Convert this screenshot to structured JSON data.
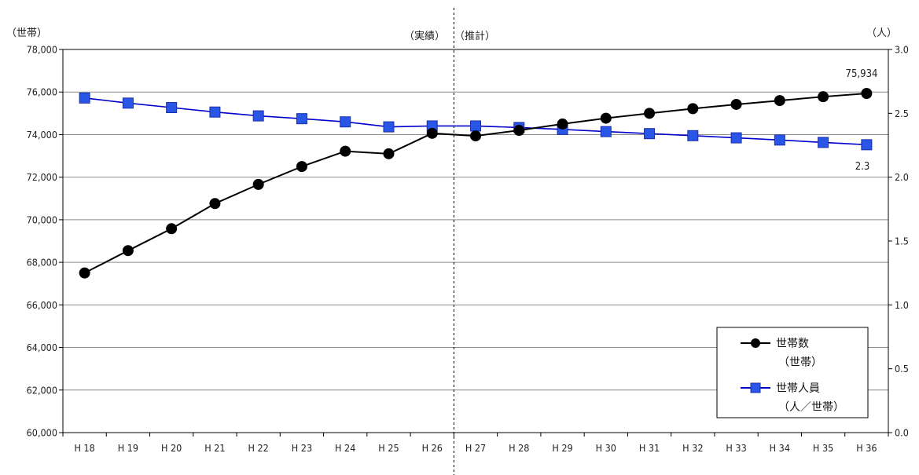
{
  "chart_data": {
    "type": "line",
    "categories": [
      "H 18",
      "H 19",
      "H 20",
      "H 21",
      "H 22",
      "H 23",
      "H 24",
      "H 25",
      "H 26",
      "H 27",
      "H 28",
      "H 29",
      "H 30",
      "H 31",
      "H 32",
      "H 33",
      "H 34",
      "H 35",
      "H 36"
    ],
    "y_left": {
      "unit_label": "（世帯）",
      "ylim": [
        60000,
        78000
      ],
      "ticks": [
        "60,000",
        "62,000",
        "64,000",
        "66,000",
        "68,000",
        "70,000",
        "72,000",
        "74,000",
        "76,000",
        "78,000"
      ]
    },
    "y_right": {
      "unit_label": "（人）",
      "ylim": [
        0.0,
        3.0
      ],
      "ticks": [
        "0.0",
        "0.5",
        "1.0",
        "1.5",
        "2.0",
        "2.5",
        "3.0"
      ]
    },
    "series": [
      {
        "name": "世帯数（世帯）",
        "legend_line1": "世帯数",
        "legend_line2": "（世帯）",
        "axis": "left",
        "color": "#000000",
        "marker": "circle",
        "values": [
          67500,
          68550,
          69580,
          70760,
          71660,
          72500,
          73220,
          73100,
          74060,
          73940,
          74200,
          74500,
          74770,
          75000,
          75220,
          75420,
          75600,
          75780,
          75934
        ]
      },
      {
        "name": "世帯人員（人／世帯）",
        "legend_line1": "世帯人員",
        "legend_line2": "（人／世帯）",
        "axis": "right",
        "color": "#0000cc",
        "marker": "square",
        "values": [
          2.62,
          2.58,
          2.545,
          2.51,
          2.48,
          2.458,
          2.433,
          2.394,
          2.401,
          2.401,
          2.389,
          2.374,
          2.357,
          2.341,
          2.325,
          2.308,
          2.291,
          2.272,
          2.254
        ]
      }
    ],
    "period_labels": {
      "actual": "（実績）",
      "forecast": "（推計）"
    },
    "divider_after_index": 8,
    "data_labels": {
      "last_households": "75,934",
      "last_persons": "2.3"
    },
    "grid": true,
    "legend_position": "bottom-right"
  }
}
